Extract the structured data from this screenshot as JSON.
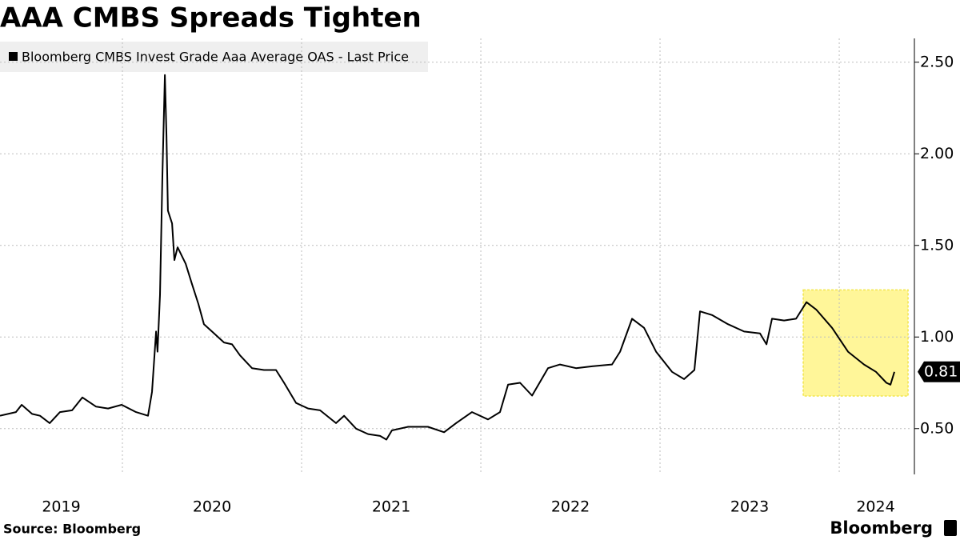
{
  "chart_data": {
    "type": "line",
    "title": "AAA CMBS Spreads Tighten",
    "source": "Source: Bloomberg",
    "brand": "Bloomberg",
    "x": [
      2019.317,
      2019.406,
      2019.438,
      2019.496,
      2019.54,
      2019.594,
      2019.652,
      2019.719,
      2019.777,
      2019.853,
      2019.92,
      2019.996,
      2020.076,
      2020.143,
      2020.165,
      2020.188,
      2020.196,
      2020.21,
      2020.223,
      2020.237,
      2020.246,
      2020.254,
      2020.277,
      2020.29,
      2020.308,
      2020.353,
      2020.388,
      2020.424,
      2020.455,
      2020.5,
      2020.567,
      2020.612,
      2020.656,
      2020.723,
      2020.79,
      2020.857,
      2020.902,
      2020.969,
      2021.036,
      2021.103,
      2021.192,
      2021.237,
      2021.304,
      2021.371,
      2021.438,
      2021.473,
      2021.504,
      2021.594,
      2021.705,
      2021.795,
      2021.862,
      2021.951,
      2022.04,
      2022.107,
      2022.152,
      2022.219,
      2022.286,
      2022.375,
      2022.442,
      2022.531,
      2022.621,
      2022.732,
      2022.777,
      2022.844,
      2022.911,
      2022.978,
      2023.067,
      2023.134,
      2023.192,
      2023.223,
      2023.29,
      2023.379,
      2023.469,
      2023.558,
      2023.594,
      2023.625,
      2023.692,
      2023.759,
      2023.817,
      2023.871,
      2023.96,
      2024.049,
      2024.138,
      2024.205,
      2024.263,
      2024.286,
      2024.308
    ],
    "series": [
      {
        "name": "Bloomberg CMBS Invest Grade Aaa Average OAS - Last Price",
        "color": "#000000",
        "values": [
          0.57,
          0.59,
          0.63,
          0.58,
          0.57,
          0.53,
          0.59,
          0.6,
          0.67,
          0.62,
          0.61,
          0.63,
          0.59,
          0.57,
          0.7,
          1.03,
          0.92,
          1.23,
          1.88,
          2.43,
          2.1,
          1.69,
          1.62,
          1.42,
          1.49,
          1.4,
          1.29,
          1.18,
          1.07,
          1.03,
          0.97,
          0.96,
          0.9,
          0.83,
          0.82,
          0.82,
          0.75,
          0.64,
          0.61,
          0.6,
          0.53,
          0.57,
          0.5,
          0.47,
          0.46,
          0.44,
          0.49,
          0.51,
          0.51,
          0.48,
          0.53,
          0.59,
          0.55,
          0.59,
          0.74,
          0.75,
          0.68,
          0.83,
          0.85,
          0.83,
          0.84,
          0.85,
          0.92,
          1.1,
          1.05,
          0.92,
          0.81,
          0.77,
          0.82,
          1.14,
          1.12,
          1.07,
          1.03,
          1.02,
          0.96,
          1.1,
          1.09,
          1.1,
          1.19,
          1.15,
          1.05,
          0.92,
          0.85,
          0.81,
          0.75,
          0.74,
          0.81
        ]
      }
    ],
    "xlim": [
      2019.317,
      2024.406
    ],
    "xticks": [
      2019,
      2020,
      2021,
      2022,
      2023,
      2024
    ],
    "ylim": [
      0.25,
      2.63
    ],
    "yticks": [
      {
        "value": 0.5,
        "label": "0.50"
      },
      {
        "value": 1.0,
        "label": "1.00"
      },
      {
        "value": 1.5,
        "label": "1.50"
      },
      {
        "value": 2.0,
        "label": "2.00"
      },
      {
        "value": 2.5,
        "label": "2.50"
      }
    ],
    "grid": true,
    "highlight": {
      "xlim": [
        2023.799,
        2024.384
      ],
      "ylim": [
        0.678,
        1.257
      ],
      "color": "#fff68f"
    }
  }
}
